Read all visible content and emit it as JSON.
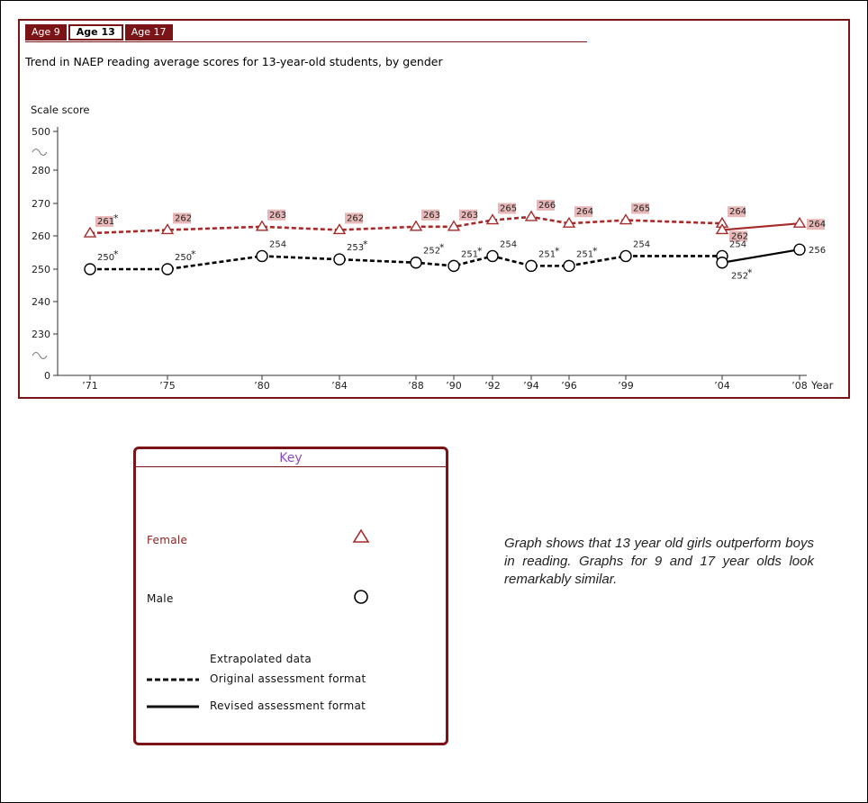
{
  "tabs": [
    {
      "label": "Age 9",
      "active": false
    },
    {
      "label": "Age 13",
      "active": true
    },
    {
      "label": "Age 17",
      "active": false
    }
  ],
  "chart_title": "Trend in NAEP reading average scores for 13-year-old students, by gender",
  "chart_data": {
    "type": "line",
    "title": "Trend in NAEP reading average scores for 13-year-old students, by gender",
    "ylabel": "Scale score",
    "xlabel": "Year",
    "x_ticks": [
      "’71",
      "’75",
      "’80",
      "’84",
      "’88",
      "’90",
      "’92",
      "’94",
      "’96",
      "’99",
      "’04",
      "’08"
    ],
    "y_ticks": [
      "500",
      "280",
      "270",
      "260",
      "250",
      "240",
      "230",
      "0"
    ],
    "y_range_shown": [
      225,
      285
    ],
    "axis_breaks": [
      "above 280",
      "below 230"
    ],
    "series": [
      {
        "name": "Female",
        "color": "#a52a2a",
        "marker": "triangle",
        "points": [
          {
            "x": "’71",
            "y": 261,
            "label": "261",
            "significant": true,
            "format": "original"
          },
          {
            "x": "’75",
            "y": 262,
            "label": "262",
            "significant": false,
            "format": "original"
          },
          {
            "x": "’80",
            "y": 263,
            "label": "263",
            "significant": false,
            "format": "original"
          },
          {
            "x": "’84",
            "y": 262,
            "label": "262",
            "significant": false,
            "format": "original"
          },
          {
            "x": "’88",
            "y": 263,
            "label": "263",
            "significant": false,
            "format": "original"
          },
          {
            "x": "’90",
            "y": 263,
            "label": "263",
            "significant": false,
            "format": "original"
          },
          {
            "x": "’92",
            "y": 265,
            "label": "265",
            "significant": false,
            "format": "original"
          },
          {
            "x": "’94",
            "y": 266,
            "label": "266",
            "significant": false,
            "format": "original"
          },
          {
            "x": "’96",
            "y": 264,
            "label": "264",
            "significant": false,
            "format": "original"
          },
          {
            "x": "’99",
            "y": 265,
            "label": "265",
            "significant": false,
            "format": "original"
          },
          {
            "x": "’04",
            "y": 264,
            "label": "264",
            "significant": false,
            "format": "original"
          },
          {
            "x": "’04",
            "y": 262,
            "label": "262",
            "significant": false,
            "format": "revised"
          },
          {
            "x": "’08",
            "y": 264,
            "label": "264",
            "significant": false,
            "format": "revised"
          }
        ]
      },
      {
        "name": "Male",
        "color": "#000000",
        "marker": "circle",
        "points": [
          {
            "x": "’71",
            "y": 250,
            "label": "250",
            "significant": true,
            "format": "original"
          },
          {
            "x": "’75",
            "y": 250,
            "label": "250",
            "significant": true,
            "format": "original"
          },
          {
            "x": "’80",
            "y": 254,
            "label": "254",
            "significant": false,
            "format": "original"
          },
          {
            "x": "’84",
            "y": 253,
            "label": "253",
            "significant": true,
            "format": "original"
          },
          {
            "x": "’88",
            "y": 252,
            "label": "252",
            "significant": true,
            "format": "original"
          },
          {
            "x": "’90",
            "y": 251,
            "label": "251",
            "significant": true,
            "format": "original"
          },
          {
            "x": "’92",
            "y": 254,
            "label": "254",
            "significant": false,
            "format": "original"
          },
          {
            "x": "’94",
            "y": 251,
            "label": "251",
            "significant": true,
            "format": "original"
          },
          {
            "x": "’96",
            "y": 251,
            "label": "251",
            "significant": true,
            "format": "original"
          },
          {
            "x": "’99",
            "y": 254,
            "label": "254",
            "significant": false,
            "format": "original"
          },
          {
            "x": "’04",
            "y": 254,
            "label": "254",
            "significant": false,
            "format": "original"
          },
          {
            "x": "’04",
            "y": 252,
            "label": "252",
            "significant": true,
            "format": "revised"
          },
          {
            "x": "’08",
            "y": 256,
            "label": "256",
            "significant": false,
            "format": "revised"
          }
        ]
      }
    ],
    "significance_mark": "*"
  },
  "key": {
    "title": "Key",
    "female_label": "Female",
    "male_label": "Male",
    "extrapolated_label": "Extrapolated data",
    "original_label": "Original assessment format",
    "revised_label": "Revised assessment format",
    "female_color": "#a52a2a",
    "male_color": "#000000"
  },
  "note": "Graph shows that 13 year old girls outperform boys in reading. Graphs for 9 and 17 year olds look remarkably similar."
}
